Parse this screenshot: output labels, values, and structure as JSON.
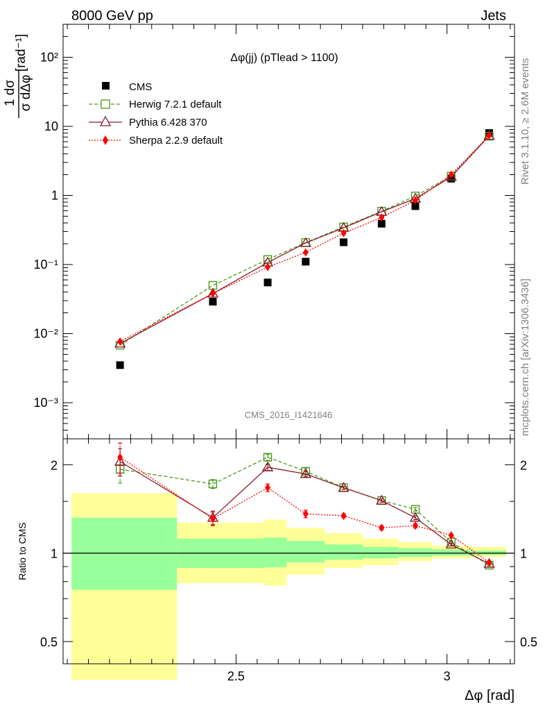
{
  "header": {
    "left": "8000 GeV pp",
    "right": "Jets",
    "side_rivet": "Rivet 3.1.10, ≥ 2.6M events",
    "side_url": "mcplots.cern.ch [arXiv:1306.3436]"
  },
  "main_plot": {
    "title": "Δφ(jj) (pTlead > 1100)",
    "ylabel_frac_num": "1 dσ",
    "ylabel_frac_den": "σ dΔφ",
    "ylabel_unit": "[rad⁻¹]",
    "watermark": "CMS_2016_I1421646",
    "ytick_labels": [
      "10⁻³",
      "10⁻²",
      "10⁻¹",
      "1",
      "10",
      "10²"
    ]
  },
  "ratio_plot": {
    "ylabel": "Ratio to CMS",
    "ytick_labels": [
      "0.5",
      "1",
      "2"
    ],
    "xlabel": "Δφ [rad]",
    "xtick_labels": [
      "2.5",
      "3"
    ]
  },
  "legend": [
    {
      "label": "CMS"
    },
    {
      "label": "Herwig 7.2.1 default"
    },
    {
      "label": "Pythia 6.428 370"
    },
    {
      "label": "Sherpa 2.2.9 default"
    }
  ],
  "colors": {
    "cms": "#000000",
    "herwig": "#4c9a1a",
    "pythia": "#8b1a2b",
    "sherpa": "#ff0000",
    "band_inner": "#99ff99",
    "band_outer": "#ffff99"
  },
  "chart_data": [
    {
      "type": "line",
      "title": "Δφ(jj) (pTlead > 1100)",
      "xlabel": "Δφ [rad]",
      "ylabel": "1/σ dσ/dΔφ [rad⁻¹]",
      "yscale": "log",
      "xlim": [
        2.09,
        3.16
      ],
      "ylim": [
        0.0003,
        300
      ],
      "x": [
        2.225,
        2.445,
        2.575,
        2.665,
        2.755,
        2.845,
        2.925,
        3.01,
        3.1
      ],
      "series": [
        {
          "name": "CMS",
          "values": [
            0.0035,
            0.029,
            0.055,
            0.11,
            0.21,
            0.39,
            0.7,
            1.75,
            8.0
          ]
        },
        {
          "name": "Herwig 7.2.1 default",
          "values": [
            0.0068,
            0.05,
            0.118,
            0.208,
            0.35,
            0.59,
            0.98,
            1.9,
            7.2
          ]
        },
        {
          "name": "Pythia 6.428 370",
          "values": [
            0.0072,
            0.038,
            0.107,
            0.205,
            0.34,
            0.58,
            0.9,
            1.86,
            7.3
          ]
        },
        {
          "name": "Sherpa 2.2.9 default",
          "values": [
            0.0077,
            0.038,
            0.092,
            0.15,
            0.285,
            0.48,
            0.85,
            2.0,
            7.4
          ]
        }
      ]
    },
    {
      "type": "line",
      "title": "Ratio to CMS",
      "xlabel": "Δφ [rad]",
      "ylabel": "Ratio to CMS",
      "yscale": "log",
      "xlim": [
        2.09,
        3.16
      ],
      "ylim": [
        0.42,
        2.45
      ],
      "x": [
        2.225,
        2.445,
        2.575,
        2.665,
        2.755,
        2.845,
        2.925,
        3.01,
        3.1
      ],
      "series": [
        {
          "name": "Herwig 7.2.1 default",
          "values": [
            1.93,
            1.72,
            2.12,
            1.9,
            1.67,
            1.51,
            1.41,
            1.09,
            0.91
          ],
          "errors": [
            0.2,
            0.06,
            0.05,
            0.04,
            0.02,
            0.02,
            0.02,
            0.01,
            0.01
          ]
        },
        {
          "name": "Pythia 6.428 370",
          "values": [
            2.05,
            1.32,
            1.96,
            1.86,
            1.67,
            1.51,
            1.32,
            1.07,
            0.92
          ],
          "errors": [
            0.22,
            0.07,
            0.05,
            0.04,
            0.02,
            0.02,
            0.02,
            0.01,
            0.01
          ]
        },
        {
          "name": "Sherpa 2.2.9 default",
          "values": [
            2.12,
            1.31,
            1.67,
            1.36,
            1.34,
            1.22,
            1.24,
            1.15,
            0.93
          ],
          "errors": [
            0.25,
            0.07,
            0.05,
            0.04,
            0.02,
            0.02,
            0.02,
            0.01,
            0.01
          ]
        }
      ],
      "bands": [
        {
          "x_low": 2.11,
          "x_high": 2.36,
          "inner": [
            0.75,
            1.32
          ],
          "outer": [
            0.37,
            1.6
          ]
        },
        {
          "x_low": 2.36,
          "x_high": 2.565,
          "inner": [
            0.89,
            1.12
          ],
          "outer": [
            0.79,
            1.27
          ]
        },
        {
          "x_low": 2.565,
          "x_high": 2.62,
          "inner": [
            0.895,
            1.13
          ],
          "outer": [
            0.775,
            1.3
          ]
        },
        {
          "x_low": 2.62,
          "x_high": 2.71,
          "inner": [
            0.93,
            1.1
          ],
          "outer": [
            0.845,
            1.22
          ]
        },
        {
          "x_low": 2.71,
          "x_high": 2.8,
          "inner": [
            0.95,
            1.07
          ],
          "outer": [
            0.89,
            1.17
          ]
        },
        {
          "x_low": 2.8,
          "x_high": 2.885,
          "inner": [
            0.96,
            1.05
          ],
          "outer": [
            0.91,
            1.12
          ]
        },
        {
          "x_low": 2.885,
          "x_high": 2.965,
          "inner": [
            0.97,
            1.04
          ],
          "outer": [
            0.94,
            1.09
          ]
        },
        {
          "x_low": 2.965,
          "x_high": 3.06,
          "inner": [
            0.98,
            1.03
          ],
          "outer": [
            0.96,
            1.06
          ]
        },
        {
          "x_low": 3.06,
          "x_high": 3.14,
          "inner": [
            0.985,
            1.02
          ],
          "outer": [
            0.97,
            1.05
          ]
        }
      ],
      "reference_line": 1
    }
  ]
}
